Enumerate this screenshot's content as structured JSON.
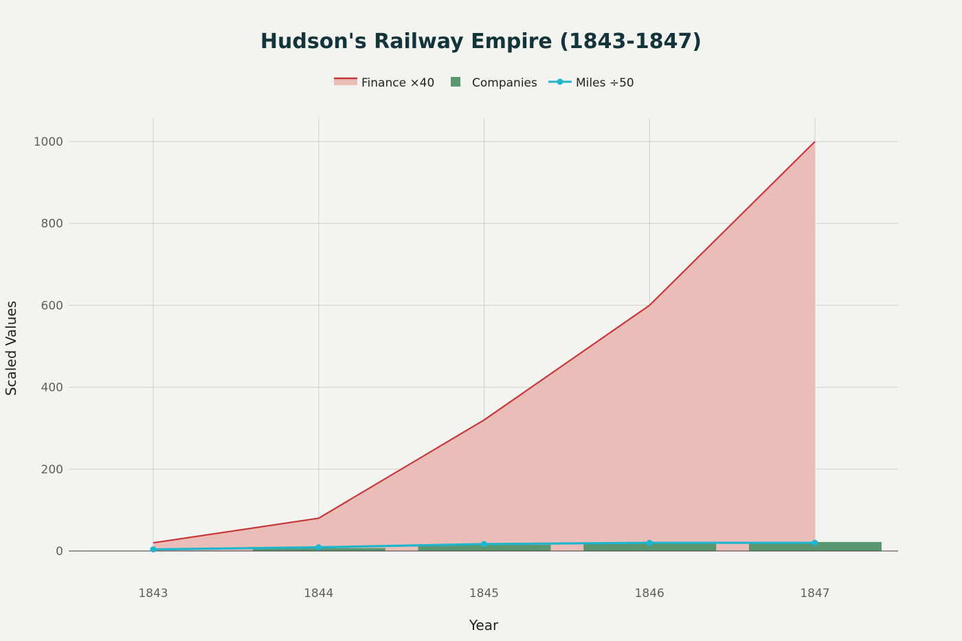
{
  "chart_data": {
    "type": "area",
    "title": "Hudson's Railway Empire (1843-1847)",
    "xlabel": "Year",
    "ylabel": "Scaled Values",
    "x": [
      1843,
      1844,
      1845,
      1846,
      1847
    ],
    "x_tick_labels": [
      "1843",
      "1844",
      "1845",
      "1846",
      "1847"
    ],
    "ylim": [
      0,
      1000
    ],
    "y_ticks": [
      0,
      200,
      400,
      600,
      800,
      1000
    ],
    "grid": true,
    "legend_position": "top-center",
    "series": [
      {
        "name": "Finance ×40",
        "type": "area",
        "color": "#c8373a",
        "fill": "#ebbdb9",
        "values": [
          20,
          80,
          320,
          600,
          1000
        ]
      },
      {
        "name": "Companies",
        "type": "bar",
        "color": "#5a9670",
        "values": [
          1,
          7,
          15,
          19,
          22
        ]
      },
      {
        "name": "Miles ÷50",
        "type": "line",
        "color": "#1fb5ce",
        "values": [
          4,
          9,
          17,
          20,
          20
        ]
      }
    ]
  }
}
